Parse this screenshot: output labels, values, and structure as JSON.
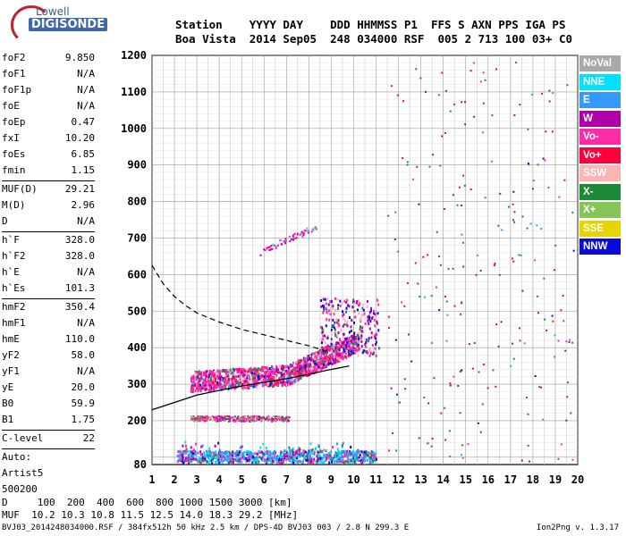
{
  "logo": {
    "top": "Lowell",
    "main": "DIGISONDE"
  },
  "header": {
    "row1": "Station    YYYY DAY    DDD HHMMSS P1  FFS S AXN PPS IGA PS",
    "row2": "Boa Vista  2014 Sep05  248 034000 RSF  005 2 713 100 03+ C0"
  },
  "params": [
    [
      [
        "foF2",
        "9.850"
      ],
      [
        "foF1",
        "N/A"
      ],
      [
        "foF1p",
        "N/A"
      ],
      [
        "foE",
        "N/A"
      ],
      [
        "foEp",
        "0.47"
      ],
      [
        "fxI",
        "10.20"
      ],
      [
        "foEs",
        "6.85"
      ],
      [
        "fmin",
        "1.15"
      ]
    ],
    [
      [
        "MUF(D)",
        "29.21"
      ],
      [
        "M(D)",
        "2.96"
      ],
      [
        "D",
        "N/A"
      ]
    ],
    [
      [
        "h`F",
        "328.0"
      ],
      [
        "h`F2",
        "328.0"
      ],
      [
        "h`E",
        "N/A"
      ],
      [
        "h`Es",
        "101.3"
      ]
    ],
    [
      [
        "hmF2",
        "350.4"
      ],
      [
        "hmF1",
        "N/A"
      ],
      [
        "hmE",
        "110.0"
      ],
      [
        "yF2",
        "58.0"
      ],
      [
        "yF1",
        "N/A"
      ],
      [
        "yE",
        "20.0"
      ],
      [
        "B0",
        "59.9"
      ],
      [
        "B1",
        "1.75"
      ]
    ],
    [
      [
        "C-level",
        "22"
      ]
    ]
  ],
  "auto": {
    "label": "Auto:",
    "artist": "Artist5",
    "code": "500200"
  },
  "legend": [
    {
      "label": "NoVal",
      "color": "#a9a9a9"
    },
    {
      "label": "NNE",
      "color": "#00e0ff"
    },
    {
      "label": "E",
      "color": "#3399ff"
    },
    {
      "label": "W",
      "color": "#b000a8"
    },
    {
      "label": "Vo-",
      "color": "#ff2aa8"
    },
    {
      "label": "Vo+",
      "color": "#ff003c"
    },
    {
      "label": "SSW",
      "color": "#ffb4b4"
    },
    {
      "label": "X-",
      "color": "#1d8a3a"
    },
    {
      "label": "X+",
      "color": "#86c45a"
    },
    {
      "label": "SSE",
      "color": "#e6d400"
    },
    {
      "label": "NNW",
      "color": "#0b0bd8"
    }
  ],
  "footer": {
    "drow": "D     100  200  400  600  800 1000 1500 3000 [km]",
    "mrow": "MUF  10.2 10.3 10.8 11.5 12.5 14.0 18.3 29.2 [MHz]",
    "file": "BVJ03_2014248034000.RSF / 384fx512h 50 kHz 2.5 km / DPS-4D BVJ03 003 / 2.8 N 299.3 E",
    "version": "Ion2Png v. 1.3.17"
  },
  "chart_data": {
    "type": "scatter",
    "x_ticks": [
      "1",
      "2",
      "3",
      "4",
      "5",
      "6",
      "7",
      "8",
      "9",
      "10",
      "11",
      "12",
      "13",
      "14",
      "15",
      "16",
      "17",
      "18",
      "19",
      "20"
    ],
    "y_ticks": [
      "80",
      "200",
      "300",
      "400",
      "500",
      "600",
      "700",
      "800",
      "900",
      "1000",
      "1100",
      "1200"
    ],
    "xlim": [
      1,
      20
    ],
    "ylim": [
      80,
      1200
    ],
    "x_unit": "MHz",
    "y_unit": "km",
    "grid": true,
    "traces": [
      {
        "name": "F2 trace",
        "x_range": [
          2.7,
          10.2
        ],
        "y_range": [
          300,
          460
        ]
      },
      {
        "name": "E-sporadic 2nd hop",
        "x_range": [
          2.7,
          7.1
        ],
        "y_range": [
          200,
          215
        ]
      },
      {
        "name": "E-sporadic",
        "x_range": [
          2.1,
          11.0
        ],
        "y_range": [
          80,
          130
        ]
      },
      {
        "name": "F2 second hop",
        "x_range": [
          5.7,
          8.3
        ],
        "y_range": [
          650,
          740
        ]
      }
    ],
    "profile_curve": {
      "x": [
        1.0,
        2,
        3,
        4,
        5,
        6,
        7,
        8,
        8.8,
        9.4,
        9.8
      ],
      "y": [
        230,
        250,
        270,
        283,
        295,
        305,
        315,
        327,
        338,
        345,
        350
      ]
    },
    "dashed_curve": {
      "x": [
        1.0,
        1.5,
        2,
        2.5,
        3,
        4,
        5,
        6,
        7,
        8,
        8.8
      ],
      "y": [
        625,
        575,
        540,
        515,
        495,
        470,
        450,
        435,
        420,
        405,
        390
      ]
    }
  }
}
